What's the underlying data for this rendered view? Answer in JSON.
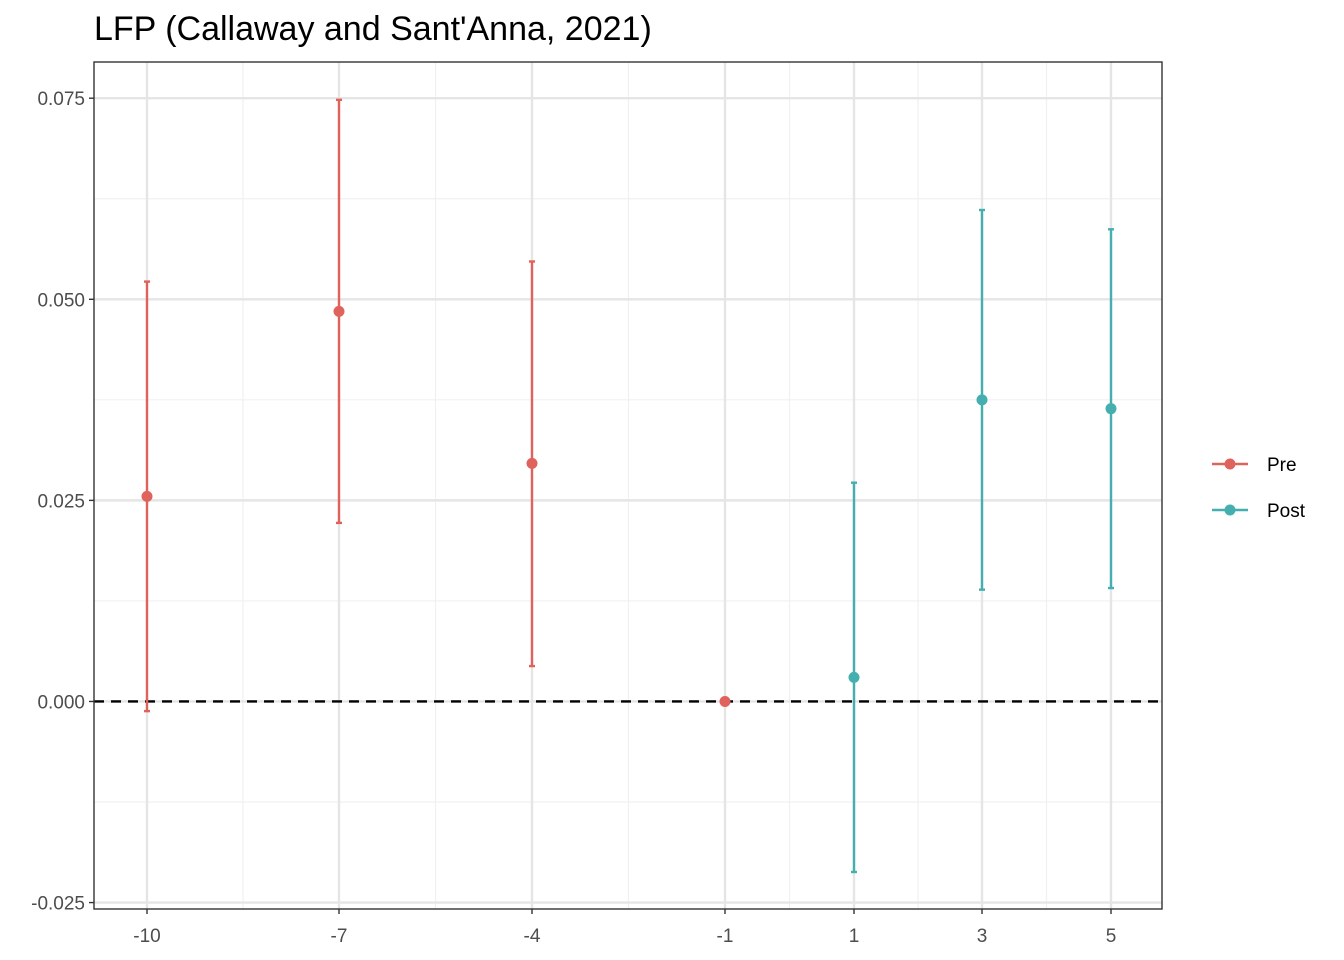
{
  "chart_data": {
    "type": "scatter",
    "title": "LFP (Callaway and Sant'Anna, 2021)",
    "xlabel": "",
    "ylabel": "",
    "x_ticks": [
      -10,
      -7,
      -4,
      -1,
      1,
      3,
      5
    ],
    "x_tick_labels": [
      "-10",
      "-7",
      "-4",
      "-1",
      "1",
      "3",
      "5"
    ],
    "y_ticks": [
      -0.025,
      0,
      0.025,
      0.05,
      0.075
    ],
    "y_tick_labels": [
      "-0.025",
      "0.000",
      "0.025",
      "0.050",
      "0.075"
    ],
    "ylim": [
      -0.0258,
      0.0795
    ],
    "reference_line": {
      "y": 0,
      "style": "dashed",
      "color": "#000000"
    },
    "grid": true,
    "legend_position": "right",
    "series": [
      {
        "name": "Pre",
        "color": "#E0625C",
        "points": [
          {
            "x": -10,
            "y": 0.0255,
            "lower": -0.0012,
            "upper": 0.0522
          },
          {
            "x": -7,
            "y": 0.0485,
            "lower": 0.0222,
            "upper": 0.0748
          },
          {
            "x": -4,
            "y": 0.0296,
            "lower": 0.0044,
            "upper": 0.0547
          },
          {
            "x": -1,
            "y": 0.0,
            "lower": 0.0,
            "upper": 0.0
          }
        ]
      },
      {
        "name": "Post",
        "color": "#45AFB0",
        "points": [
          {
            "x": 1,
            "y": 0.003,
            "lower": -0.0212,
            "upper": 0.0272
          },
          {
            "x": 3,
            "y": 0.0375,
            "lower": 0.0139,
            "upper": 0.0611
          },
          {
            "x": 5,
            "y": 0.0364,
            "lower": 0.0141,
            "upper": 0.0587
          }
        ]
      }
    ]
  }
}
